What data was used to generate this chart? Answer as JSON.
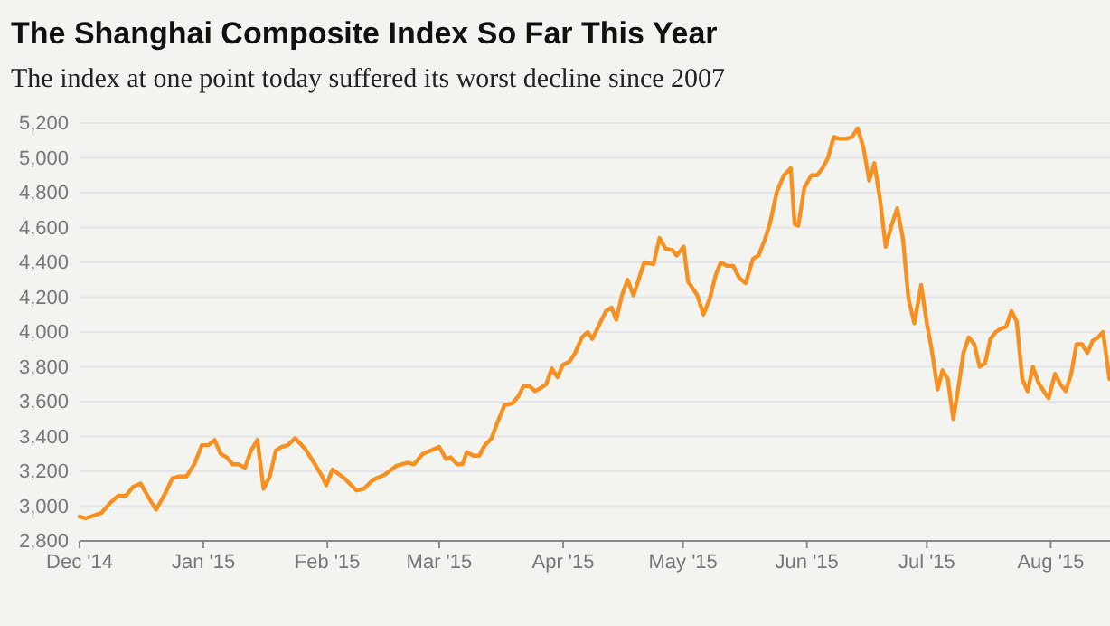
{
  "chart_data": {
    "type": "line",
    "title": "The Shanghai Composite Index So Far This Year",
    "subtitle": "The index at one point today suffered its worst decline since 2007",
    "xlim": [
      "2014-12-01",
      "2015-08-15T20:00"
    ],
    "xticks": [
      {
        "value": "2014-12-01",
        "label": "Dec '14"
      },
      {
        "value": "2015-01-01",
        "label": "Jan '15"
      },
      {
        "value": "2015-02-01",
        "label": "Feb '15"
      },
      {
        "value": "2015-03-01",
        "label": "Mar '15"
      },
      {
        "value": "2015-04-01",
        "label": "Apr '15"
      },
      {
        "value": "2015-05-01",
        "label": "May '15"
      },
      {
        "value": "2015-06-01",
        "label": "Jun '15"
      },
      {
        "value": "2015-07-01",
        "label": "Jul '15"
      },
      {
        "value": "2015-08-01",
        "label": "Aug '15"
      }
    ],
    "ylim": [
      2800,
      5200
    ],
    "yticks": [
      {
        "value": 2800,
        "label": "2,800"
      },
      {
        "value": 3000,
        "label": "3,000"
      },
      {
        "value": 3200,
        "label": "3,200"
      },
      {
        "value": 3400,
        "label": "3,400"
      },
      {
        "value": 3600,
        "label": "3,600"
      },
      {
        "value": 3800,
        "label": "3,800"
      },
      {
        "value": 4000,
        "label": "4,000"
      },
      {
        "value": 4200,
        "label": "4,200"
      },
      {
        "value": 4400,
        "label": "4,400"
      },
      {
        "value": 4600,
        "label": "4,600"
      },
      {
        "value": 4800,
        "label": "4,800"
      },
      {
        "value": 5000,
        "label": "5,000"
      },
      {
        "value": 5200,
        "label": "5,200"
      }
    ],
    "grid": "y",
    "marker": "none",
    "line_style": "solid",
    "series": [
      {
        "color": "#f7901e",
        "x": [
          "2014-12-01T00:00",
          "2014-12-02T12:00",
          "2014-12-06T10:00",
          "2014-12-08T18:00",
          "2014-12-10T17:00",
          "2014-12-12T15:00",
          "2014-12-14T09:00",
          "2014-12-16T07:00",
          "2014-12-18T06:00",
          "2014-12-20T04:00",
          "2014-12-22T03:00",
          "2014-12-24T06:00",
          "2014-12-25T19:00",
          "2014-12-27T18:00",
          "2014-12-29T16:00",
          "2014-12-31T15:00",
          "2015-01-02T06:00",
          "2015-01-03T19:00",
          "2015-01-05T08:00",
          "2015-01-06T21:00",
          "2015-01-08T07:00",
          "2015-01-09T20:00",
          "2015-01-11T09:00",
          "2015-01-12T22:00",
          "2015-01-14T12:00",
          "2015-01-16T01:00",
          "2015-01-17T14:00",
          "2015-01-19T03:00",
          "2015-01-20T13:00",
          "2015-01-22T02:00",
          "2015-01-23T23:00",
          "2015-01-26T10:00",
          "2015-01-28T22:00",
          "2015-01-30T18:00",
          "2015-01-31T17:00",
          "2015-02-02T07:00",
          "2015-02-05T07:00",
          "2015-02-08T07:00",
          "2015-02-10T04:00",
          "2015-02-12T09:00",
          "2015-02-15T09:00",
          "2015-02-18T04:00",
          "2015-02-21T04:00",
          "2015-02-22T16:00",
          "2015-02-24T21:00",
          "2015-03-01T00:00",
          "2015-03-02T17:00",
          "2015-03-03T20:00",
          "2015-03-05T12:00",
          "2015-03-06T19:00",
          "2015-03-07T22:00",
          "2015-03-09T14:00",
          "2015-03-11T00:00",
          "2015-03-12T10:00",
          "2015-03-14T02:00",
          "2015-03-15T09:00",
          "2015-03-17T08:00",
          "2015-03-19T08:00",
          "2015-03-20T18:00",
          "2015-03-22T03:00",
          "2015-03-23T13:00",
          "2015-03-24T23:00",
          "2015-03-26T12:00",
          "2015-03-27T18:00",
          "2015-03-29T04:00",
          "2015-03-30T14:00",
          "2015-03-31T21:00",
          "2015-04-02T14:00",
          "2015-04-04T00:00",
          "2015-04-05T17:00",
          "2015-04-07T03:00",
          "2015-04-08T07:00",
          "2015-04-10T00:00",
          "2015-04-11T17:00",
          "2015-04-13T03:00",
          "2015-04-14T07:00",
          "2015-04-15T17:00",
          "2015-04-17T03:00",
          "2015-04-18T14:00",
          "2015-04-19T21:00",
          "2015-04-21T07:00",
          "2015-04-23T14:00",
          "2015-04-25T03:00",
          "2015-04-26T14:00",
          "2015-04-28T07:00",
          "2015-04-29T10:00",
          "2015-05-01T04:00",
          "2015-05-02T06:00",
          "2015-05-04T14:00",
          "2015-05-06T03:00",
          "2015-05-07T16:00",
          "2015-05-09T05:00",
          "2015-05-10T11:00",
          "2015-05-12T00:00",
          "2015-05-13T13:00",
          "2015-05-15T02:00",
          "2015-05-16T16:00",
          "2015-05-18T12:00",
          "2015-05-19T22:00",
          "2015-05-21T11:00",
          "2015-05-22T17:00",
          "2015-05-24T13:00",
          "2015-05-26T06:00",
          "2015-05-27T23:00",
          "2015-05-28T22:00",
          "2015-05-29T20:00",
          "2015-05-31T09:00",
          "2015-06-02T03:00",
          "2015-06-03T14:00",
          "2015-06-04T21:00",
          "2015-06-06T07:00",
          "2015-06-07T17:00",
          "2015-06-09T03:00",
          "2015-06-10T21:00",
          "2015-06-12T07:00",
          "2015-06-13T17:00",
          "2015-06-15T03:00",
          "2015-06-16T14:00",
          "2015-06-17T21:00",
          "2015-06-19T07:00",
          "2015-06-20T17:00",
          "2015-06-22T03:00",
          "2015-06-23T14:00",
          "2015-06-25T00:00",
          "2015-06-26T10:00",
          "2015-06-27T21:00",
          "2015-06-29T14:00",
          "2015-07-01T00:00",
          "2015-07-02T05:00",
          "2015-07-03T17:00",
          "2015-07-04T22:00",
          "2015-07-06T06:00",
          "2015-07-07T15:00",
          "2015-07-08T23:00",
          "2015-07-10T04:00",
          "2015-07-11T12:00",
          "2015-07-12T21:00",
          "2015-07-14T05:00",
          "2015-07-15T13:00",
          "2015-07-16T22:00",
          "2015-07-18T06:00",
          "2015-07-19T14:00",
          "2015-07-20T20:00",
          "2015-07-22T04:00",
          "2015-07-23T12:00",
          "2015-07-24T21:00",
          "2015-07-26T05:00",
          "2015-07-27T13:00",
          "2015-07-28T22:00",
          "2015-07-30T06:00",
          "2015-07-31T11:00",
          "2015-08-02T02:00",
          "2015-08-03T10:00",
          "2015-08-04T18:00",
          "2015-08-06T03:00",
          "2015-08-07T11:00",
          "2015-08-08T20:00",
          "2015-08-10T04:00",
          "2015-08-11T12:00",
          "2015-08-12T21:00",
          "2015-08-14T02:00",
          "2015-08-15T17:00"
        ],
        "values": [
          2940,
          2930,
          2960,
          3020,
          3060,
          3060,
          3110,
          3130,
          3050,
          2980,
          3060,
          3160,
          3170,
          3170,
          3240,
          3350,
          3350,
          3380,
          3300,
          3280,
          3240,
          3240,
          3220,
          3320,
          3380,
          3100,
          3170,
          3320,
          3340,
          3350,
          3390,
          3330,
          3240,
          3170,
          3120,
          3210,
          3160,
          3090,
          3100,
          3150,
          3180,
          3230,
          3250,
          3240,
          3300,
          3340,
          3270,
          3280,
          3240,
          3240,
          3310,
          3290,
          3290,
          3350,
          3390,
          3470,
          3580,
          3590,
          3630,
          3690,
          3690,
          3660,
          3680,
          3700,
          3790,
          3740,
          3810,
          3830,
          3880,
          3970,
          4000,
          3960,
          4040,
          4120,
          4140,
          4070,
          4210,
          4300,
          4210,
          4300,
          4400,
          4390,
          4540,
          4480,
          4470,
          4440,
          4490,
          4290,
          4210,
          4100,
          4190,
          4330,
          4400,
          4380,
          4380,
          4310,
          4280,
          4420,
          4440,
          4530,
          4620,
          4810,
          4900,
          4940,
          4620,
          4610,
          4830,
          4900,
          4900,
          4940,
          5000,
          5120,
          5110,
          5110,
          5120,
          5170,
          5060,
          4870,
          4970,
          4760,
          4490,
          4610,
          4710,
          4540,
          4190,
          4050,
          4270,
          4050,
          3900,
          3670,
          3780,
          3730,
          3500,
          3690,
          3880,
          3970,
          3930,
          3800,
          3820,
          3960,
          4000,
          4020,
          4030,
          4120,
          4060,
          3730,
          3660,
          3800,
          3710,
          3660,
          3620,
          3760,
          3700,
          3660,
          3760,
          3930,
          3930,
          3880,
          3950,
          3970,
          4000,
          3730
        ]
      }
    ]
  }
}
